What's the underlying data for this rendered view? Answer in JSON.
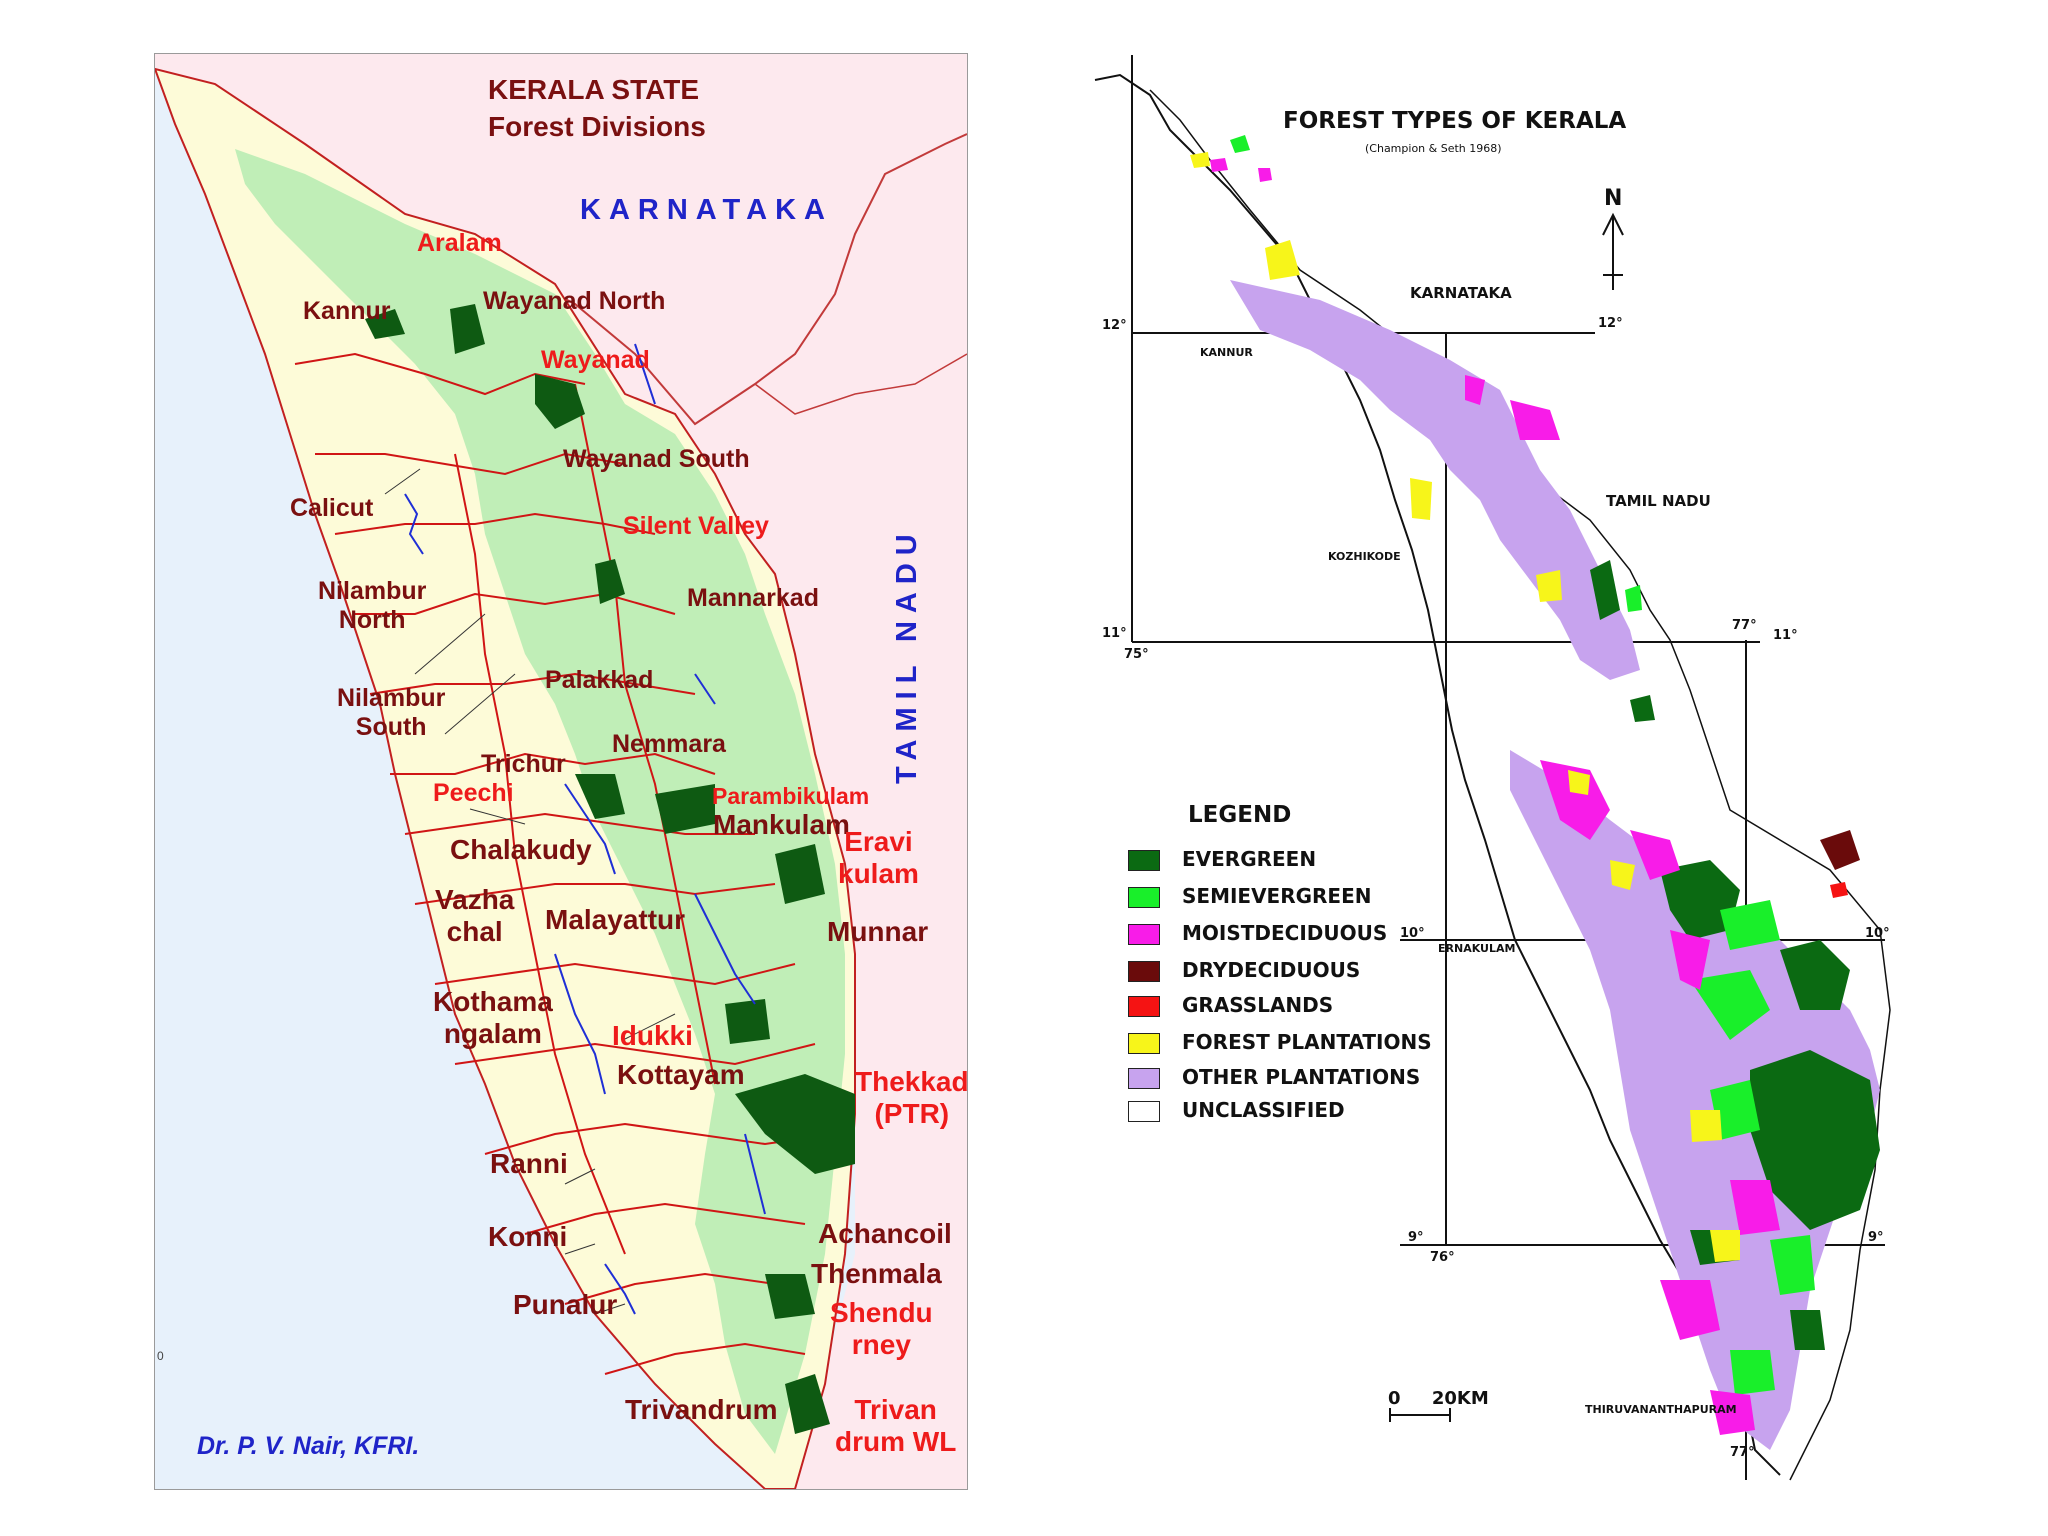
{
  "left_map": {
    "title_line1": "KERALA   STATE",
    "title_line2": "Forest Divisions",
    "neighbors": {
      "north": "KARNATAKA",
      "east": "TAMIL NADU"
    },
    "credit": "Dr. P. V. Nair, KFRI.",
    "corner_mark": "0",
    "divisions": [
      {
        "id": "aralam",
        "text": "Aralam",
        "style": "red"
      },
      {
        "id": "kannur",
        "text": "Kannur",
        "style": "maroon"
      },
      {
        "id": "wayanad-north",
        "text": "Wayanad North",
        "style": "maroon"
      },
      {
        "id": "wayanad",
        "text": "Wayanad",
        "style": "red"
      },
      {
        "id": "wayanad-south",
        "text": "Wayanad South",
        "style": "maroon"
      },
      {
        "id": "calicut",
        "text": "Calicut",
        "style": "maroon"
      },
      {
        "id": "silent-valley",
        "text": "Silent Valley",
        "style": "red"
      },
      {
        "id": "nilambur-north",
        "text": "Nilambur\nNorth",
        "style": "maroon"
      },
      {
        "id": "mannarkad",
        "text": "Mannarkad",
        "style": "maroon"
      },
      {
        "id": "palakkad",
        "text": "Palakkad",
        "style": "maroon"
      },
      {
        "id": "nilambur-south",
        "text": "Nilambur\nSouth",
        "style": "maroon"
      },
      {
        "id": "nemmara",
        "text": "Nemmara",
        "style": "maroon"
      },
      {
        "id": "trichur",
        "text": "Trichur",
        "style": "maroon"
      },
      {
        "id": "peechi",
        "text": "Peechi",
        "style": "red"
      },
      {
        "id": "parambikulam",
        "text": "Parambikulam",
        "style": "red"
      },
      {
        "id": "mankulam",
        "text": "Mankulam",
        "style": "maroon"
      },
      {
        "id": "chalakudy",
        "text": "Chalakudy",
        "style": "maroon"
      },
      {
        "id": "eravikulam",
        "text": "Eravi\nkulam",
        "style": "red"
      },
      {
        "id": "vazhachal",
        "text": "Vazha\nchal",
        "style": "maroon"
      },
      {
        "id": "malayattur",
        "text": "Malayattur",
        "style": "maroon"
      },
      {
        "id": "munnar",
        "text": "Munnar",
        "style": "maroon"
      },
      {
        "id": "kothamangalam",
        "text": "Kothama\nngalam",
        "style": "maroon"
      },
      {
        "id": "idukki",
        "text": "Idukki",
        "style": "red"
      },
      {
        "id": "kottayam",
        "text": "Kottayam",
        "style": "maroon"
      },
      {
        "id": "thekkady",
        "text": "Thekkad\n(PTR)",
        "style": "red"
      },
      {
        "id": "ranni",
        "text": "Ranni",
        "style": "maroon"
      },
      {
        "id": "konni",
        "text": "Konni",
        "style": "maroon"
      },
      {
        "id": "achancoil",
        "text": "Achancoil",
        "style": "maroon"
      },
      {
        "id": "thenmala",
        "text": "Thenmala",
        "style": "maroon"
      },
      {
        "id": "shendurney",
        "text": "Shendu\nrney",
        "style": "red"
      },
      {
        "id": "punalur",
        "text": "Punalur",
        "style": "maroon"
      },
      {
        "id": "trivandrum",
        "text": "Trivandrum",
        "style": "maroon"
      },
      {
        "id": "trivandrum-wl",
        "text": "Trivan\ndrum WL",
        "style": "red"
      }
    ],
    "colors": {
      "land": "#fdfbd8",
      "sea": "#e7f1fb",
      "neighbor": "#fde9ee",
      "forest": "#b9ecb4",
      "sanctuary": "#0e5a12",
      "border": "#d01515",
      "river": "#1f2fd6"
    }
  },
  "right_map": {
    "title": "FOREST TYPES OF KERALA",
    "subtitle": "(Champion & Seth 1968)",
    "north_label": "N",
    "places": [
      "KARNATAKA",
      "KANNUR",
      "TAMIL NADU",
      "KOZHIKODE",
      "ERNAKULAM",
      "THIRUVANANTHAPURAM"
    ],
    "grid_labels": {
      "lat12_left": "12°",
      "lat12_right": "12°",
      "lat11_left": "11°",
      "lat11_right": "11°",
      "lat10_left": "10°",
      "lat10_right": "10°",
      "lat9_left": "9°",
      "lat9_right": "9°",
      "lon75": "75°",
      "lon76": "76°",
      "lon77_top": "77°",
      "lon77_bottom": "77°"
    },
    "legend_title": "LEGEND",
    "legend": [
      {
        "label": "EVERGREEN",
        "color": "#0b6a12"
      },
      {
        "label": "SEMIEVERGREEN",
        "color": "#19ef2a"
      },
      {
        "label": "MOISTDECIDUOUS",
        "color": "#f81ce8"
      },
      {
        "label": "DRYDECIDUOUS",
        "color": "#6a0b0b"
      },
      {
        "label": "GRASSLANDS",
        "color": "#f51313"
      },
      {
        "label": "FOREST PLANTATIONS",
        "color": "#f7f51a"
      },
      {
        "label": "OTHER PLANTATIONS",
        "color": "#c7a3ee"
      },
      {
        "label": "UNCLASSIFIED",
        "color": "#ffffff"
      }
    ],
    "scale_label": "0     20KM"
  }
}
